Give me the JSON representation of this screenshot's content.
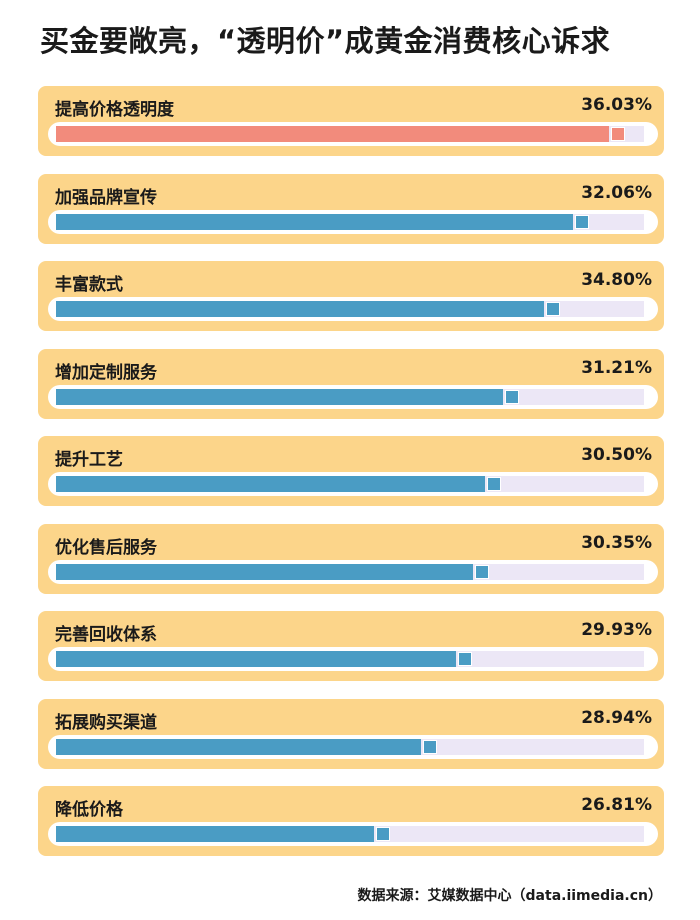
{
  "title": "买金要敞亮，“透明价”成黄金消费核心诉求",
  "source": "数据来源：艾媒数据中心（data.iimedia.cn）",
  "colors": {
    "highlight": "#f28b7c",
    "bar": "#4a9cc4",
    "card": "#fcd58a",
    "track": "#ece7f6"
  },
  "chart_data": {
    "type": "bar",
    "orientation": "horizontal",
    "title": "买金要敞亮，“透明价”成黄金消费核心诉求",
    "categories": [
      "提高价格透明度",
      "加强品牌宣传",
      "丰富款式",
      "增加定制服务",
      "提升工艺",
      "优化售后服务",
      "完善回收体系",
      "拓展购买渠道",
      "降低价格"
    ],
    "values": [
      36.03,
      32.06,
      34.8,
      31.21,
      30.5,
      30.35,
      29.93,
      28.94,
      26.81
    ],
    "labels": [
      "36.03%",
      "32.06%",
      "34.80%",
      "31.21%",
      "30.50%",
      "30.35%",
      "29.93%",
      "28.94%",
      "26.81%"
    ],
    "unit": "%",
    "highlight_index": 0,
    "bar_fill_fraction": [
      0.94,
      0.88,
      0.83,
      0.76,
      0.73,
      0.71,
      0.68,
      0.62,
      0.54
    ]
  }
}
